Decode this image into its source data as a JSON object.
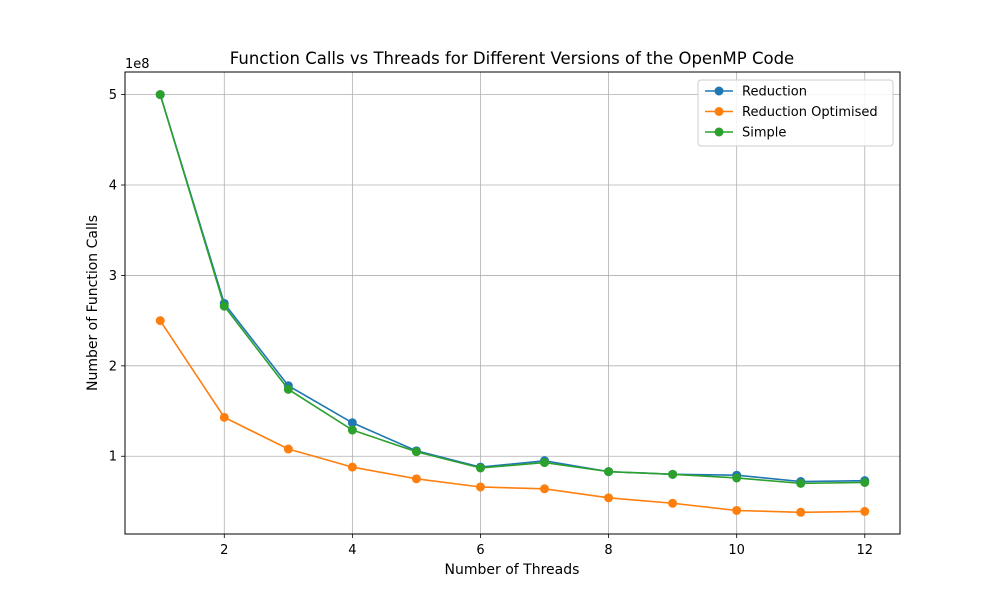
{
  "chart_data": {
    "type": "line",
    "title": "Function Calls vs Threads for Different Versions of the OpenMP Code",
    "xlabel": "Number of Threads",
    "ylabel": "Number of Function Calls",
    "y_offset_label": "1e8",
    "xlim": [
      0.45,
      12.55
    ],
    "ylim": [
      0.14,
      5.25
    ],
    "x_ticks": [
      2,
      4,
      6,
      8,
      10,
      12
    ],
    "y_ticks": [
      1,
      2,
      3,
      4,
      5
    ],
    "grid": true,
    "legend_position": "top-right",
    "x": [
      1,
      2,
      3,
      4,
      5,
      6,
      7,
      8,
      9,
      10,
      11,
      12
    ],
    "series": [
      {
        "name": "Reduction",
        "color": "#1f77b4",
        "values": [
          5.0,
          2.69,
          1.78,
          1.37,
          1.06,
          0.88,
          0.95,
          0.83,
          0.8,
          0.79,
          0.72,
          0.73
        ]
      },
      {
        "name": "Reduction Optimised",
        "color": "#ff7f0e",
        "values": [
          2.5,
          1.43,
          1.08,
          0.88,
          0.75,
          0.66,
          0.64,
          0.54,
          0.48,
          0.4,
          0.38,
          0.39
        ]
      },
      {
        "name": "Simple",
        "color": "#2ca02c",
        "values": [
          5.0,
          2.66,
          1.74,
          1.29,
          1.05,
          0.87,
          0.93,
          0.83,
          0.8,
          0.76,
          0.7,
          0.71
        ]
      }
    ]
  }
}
